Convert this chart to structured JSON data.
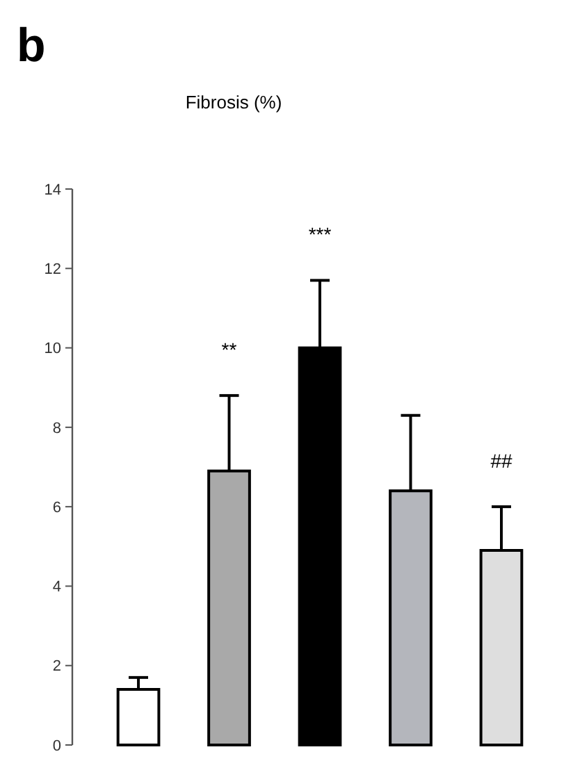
{
  "chart_data": {
    "type": "bar",
    "title": "b",
    "subtitle": "Fibrosis (%)",
    "categories": [
      null,
      null,
      null,
      null,
      null
    ],
    "values": [
      1.4,
      6.9,
      10,
      6.4,
      4.9
    ],
    "colors": [
      "#ffffff",
      "#a9a9a9",
      "#000000",
      "#b4b6bc",
      "#dedede"
    ],
    "errors": [
      [
        1.4,
        1.7
      ],
      [
        6.9,
        8.8
      ],
      [
        10,
        11.7
      ],
      [
        6.4,
        8.3
      ],
      [
        4.9,
        6.0
      ]
    ],
    "ylim": [
      0,
      14
    ],
    "yticks": [
      0,
      2,
      4,
      6,
      8,
      10,
      12,
      14
    ],
    "annotations": [
      "**",
      "***",
      "##"
    ],
    "grid": false
  }
}
